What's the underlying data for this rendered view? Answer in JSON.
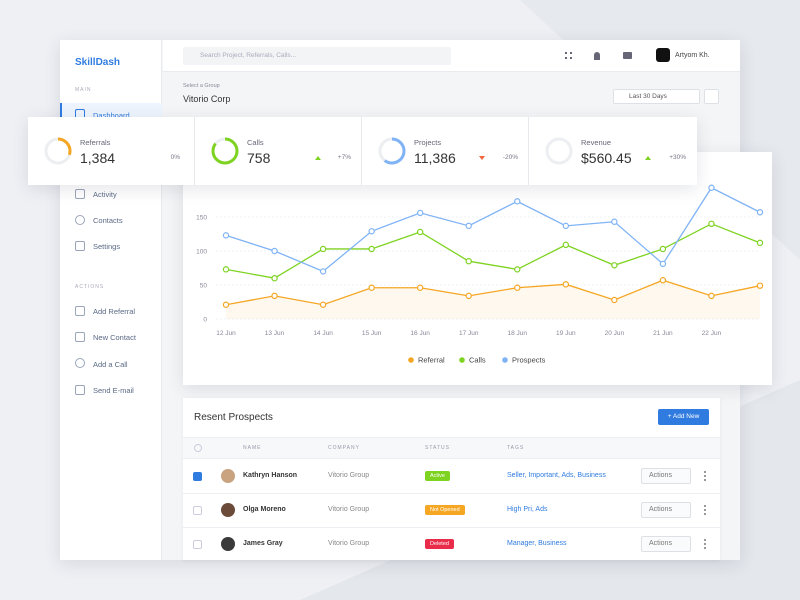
{
  "header": {
    "brand": "SkillDash",
    "search_placeholder": "Search Project, Referrals, Calls...",
    "user": "Artyom Kh."
  },
  "sidebar": {
    "main_label": "MAIN",
    "main_items": [
      "Dashboard",
      "Activity",
      "Contacts",
      "Settings"
    ],
    "actions_label": "ACTIONS",
    "action_items": [
      "Add Referral",
      "New Contact",
      "Add a Call",
      "Send E-mail"
    ]
  },
  "group": {
    "label": "Select a Group",
    "name": "Vitorio Corp",
    "date_range": "Last 30 Days"
  },
  "stats": [
    {
      "label": "Referrals",
      "value": "1,384",
      "change": "0%"
    },
    {
      "label": "Calls",
      "value": "758",
      "change": "+7%"
    },
    {
      "label": "Projects",
      "value": "11,386",
      "change": "-20%"
    },
    {
      "label": "Revenue",
      "value": "$560.45",
      "change": "+30%"
    }
  ],
  "chart_data": {
    "type": "line",
    "categories": [
      "12 Jun",
      "13 Jun",
      "14 Jun",
      "15 Jun",
      "16 Jun",
      "17 Jun",
      "18 Jun",
      "19 Jun",
      "20 Jun",
      "21 Jun",
      "22 Jun",
      null
    ],
    "series": [
      {
        "name": "Referral",
        "color": "#f5a623",
        "values": [
          21,
          34,
          21,
          46,
          46,
          34,
          46,
          51,
          28,
          57,
          34,
          49
        ]
      },
      {
        "name": "Calls",
        "color": "#7ed321",
        "values": [
          73,
          60,
          103,
          103,
          128,
          85,
          73,
          109,
          79,
          103,
          140,
          112
        ]
      },
      {
        "name": "Prospects",
        "color": "#7fb3f5",
        "values": [
          123,
          100,
          70,
          129,
          156,
          137,
          173,
          137,
          143,
          81,
          193,
          157
        ]
      }
    ],
    "ylim": [
      0,
      200
    ],
    "yticks": [
      0,
      50,
      100,
      150
    ],
    "grid": true,
    "legend": "bottom",
    "area_series": "Referral"
  },
  "table": {
    "title": "Resent Prospects",
    "button": "+ Add New",
    "columns": [
      "NAME",
      "COMPANY",
      "STATUS",
      "TAGS"
    ],
    "action_label": "Actions",
    "rows": [
      [
        "Kathryn Hanson",
        "Vitorio Group",
        "Active",
        "Seller, Important, Ads, Business"
      ],
      [
        "Olga Moreno",
        "Vitorio Group",
        "Not Opened",
        "High Pri, Ads"
      ],
      [
        "James Gray",
        "Vitorio Group",
        "Deleted",
        "Manager, Business"
      ]
    ]
  }
}
